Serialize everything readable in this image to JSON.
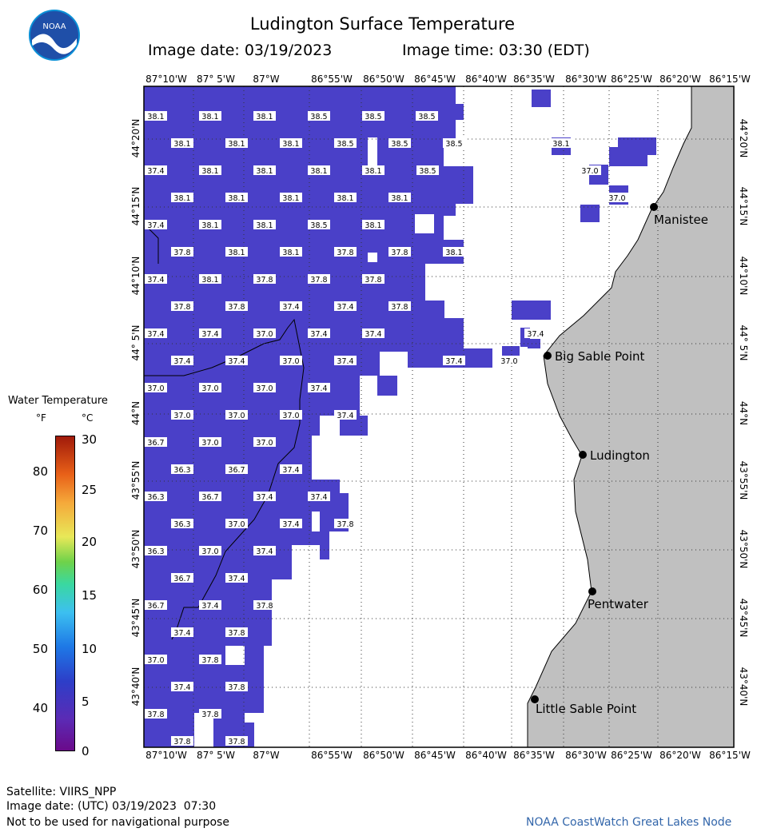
{
  "title": "Ludington Surface Temperature",
  "image_date": "Image date: 03/19/2023",
  "image_time": "Image time: 03:30 (EDT)",
  "logo_text": "NOAA",
  "lon_labels": [
    "87°10'W",
    "87° 5'W",
    "87°W",
    "86°55'W",
    "86°50'W",
    "86°45'W",
    "86°40'W",
    "86°35'W",
    "86°30'W",
    "86°25'W",
    "86°20'W",
    "86°15'W"
  ],
  "lat_labels": [
    "44°20'N",
    "44°15'N",
    "44°10'N",
    "44° 5'N",
    "44°N",
    "43°55'N",
    "43°50'N",
    "43°45'N",
    "43°40'N"
  ],
  "legend": {
    "title": "Water Temperature",
    "unit_f": "°F",
    "unit_c": "°C",
    "f_ticks": [
      "80",
      "70",
      "60",
      "50",
      "40"
    ],
    "c_ticks": [
      "30",
      "25",
      "20",
      "15",
      "10",
      "5",
      "0"
    ]
  },
  "places": [
    {
      "name": "Manistee"
    },
    {
      "name": "Big Sable Point"
    },
    {
      "name": "Ludington"
    },
    {
      "name": "Pentwater"
    },
    {
      "name": "Little Sable Point"
    }
  ],
  "temperature_labels": [
    [
      "38.1",
      "38.1",
      "38.1",
      "38.5",
      "38.5",
      "38.5"
    ],
    [
      "38.1",
      "38.1",
      "38.1",
      "38.5",
      "38.5",
      "38.5",
      "38.1"
    ],
    [
      "37.4",
      "38.1",
      "38.1",
      "38.1",
      "38.1",
      "38.5",
      "37.0"
    ],
    [
      "38.1",
      "38.1",
      "38.1",
      "38.1",
      "38.1",
      "37.0"
    ],
    [
      "37.4",
      "38.1",
      "38.1",
      "38.5",
      "38.1"
    ],
    [
      "37.8",
      "38.1",
      "38.1",
      "37.8",
      "37.8",
      "38.1"
    ],
    [
      "37.4",
      "38.1",
      "37.8",
      "37.8",
      "37.8"
    ],
    [
      "37.8",
      "37.8",
      "37.4",
      "37.4",
      "37.8"
    ],
    [
      "37.4",
      "37.4",
      "37.0",
      "37.4",
      "37.4",
      "37.4"
    ],
    [
      "37.4",
      "37.4",
      "37.0",
      "37.4",
      "37.4",
      "37.0"
    ],
    [
      "37.0",
      "37.0",
      "37.0",
      "37.4"
    ],
    [
      "37.0",
      "37.0",
      "37.0",
      "37.4"
    ],
    [
      "36.7",
      "37.0",
      "37.0"
    ],
    [
      "36.3",
      "36.7",
      "37.4"
    ],
    [
      "36.3",
      "36.7",
      "37.4",
      "37.4"
    ],
    [
      "36.3",
      "37.0",
      "37.4",
      "37.8"
    ],
    [
      "36.3",
      "37.0",
      "37.4"
    ],
    [
      "36.7",
      "37.4"
    ],
    [
      "36.7",
      "37.4",
      "37.8"
    ],
    [
      "37.4",
      "37.8"
    ],
    [
      "37.0",
      "37.8"
    ],
    [
      "37.4",
      "37.8"
    ],
    [
      "37.8",
      "37.8"
    ],
    [
      "37.8",
      "37.8"
    ]
  ],
  "colors": {
    "water": "#4a40c8",
    "land": "#c0c0c0",
    "grid": "#555555"
  },
  "footer": {
    "satellite": "Satellite: VIIRS_NPP",
    "utc_date": "Image date: (UTC) 03/19/2023  07:30",
    "note": "Not to be used for navigational purpose",
    "credit": "NOAA CoastWatch Great Lakes Node"
  }
}
